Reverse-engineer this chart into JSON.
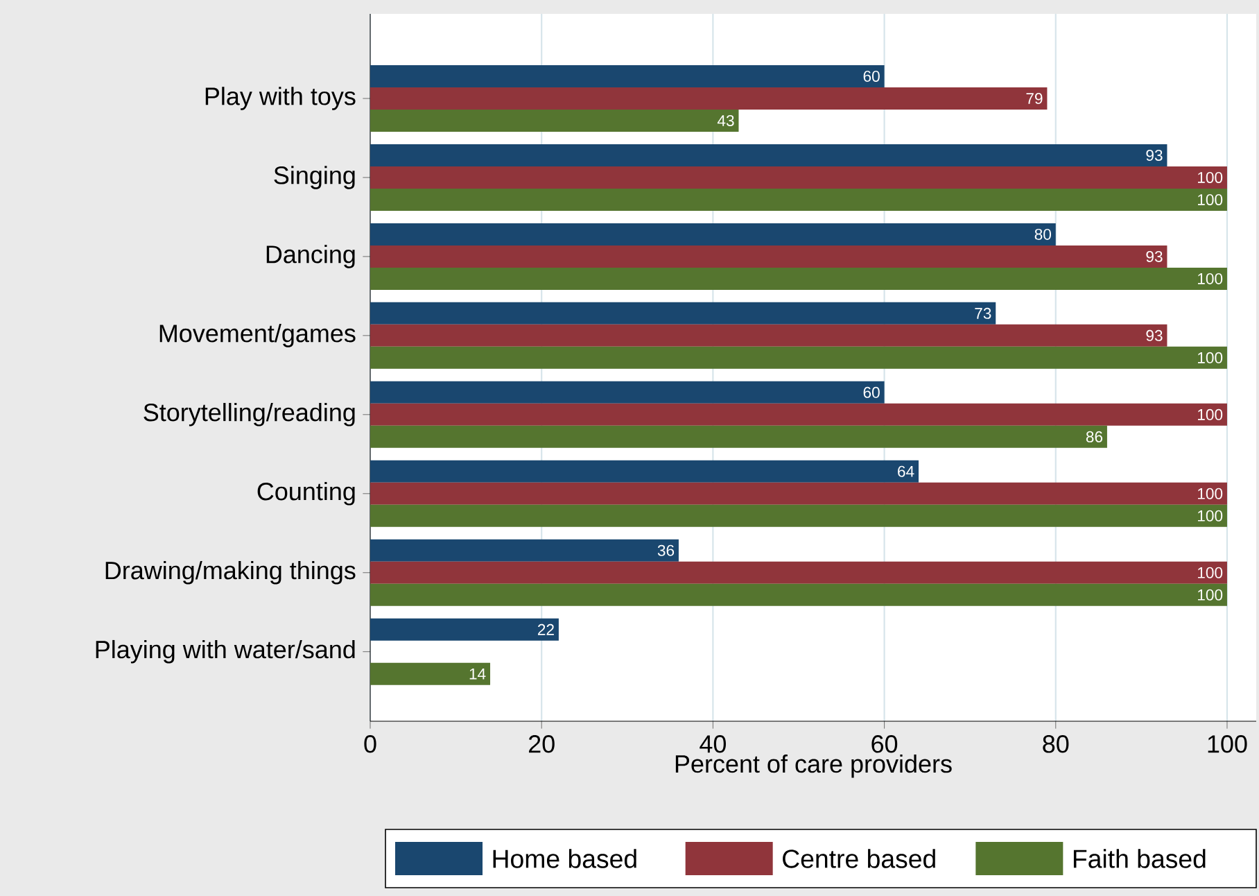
{
  "chart_data": {
    "type": "bar",
    "orientation": "horizontal",
    "xlabel": "Percent of care providers",
    "categories": [
      "Play with toys",
      "Singing",
      "Dancing",
      "Movement/games",
      "Storytelling/reading",
      "Counting",
      "Drawing/making things",
      "Playing with water/sand"
    ],
    "series": [
      {
        "name": "Home based",
        "color": "#1a476f",
        "values": [
          60,
          93,
          80,
          73,
          60,
          64,
          36,
          22
        ]
      },
      {
        "name": "Centre based",
        "color": "#90353b",
        "values": [
          79,
          100,
          93,
          93,
          100,
          100,
          100,
          null
        ]
      },
      {
        "name": "Faith based",
        "color": "#55752f",
        "values": [
          43,
          100,
          100,
          100,
          86,
          100,
          100,
          14
        ]
      }
    ],
    "xlim": [
      0,
      103.4
    ],
    "xticks": [
      0,
      20,
      40,
      60,
      80,
      100
    ],
    "grid": "x",
    "legend": "bottom",
    "data_labels": true
  }
}
